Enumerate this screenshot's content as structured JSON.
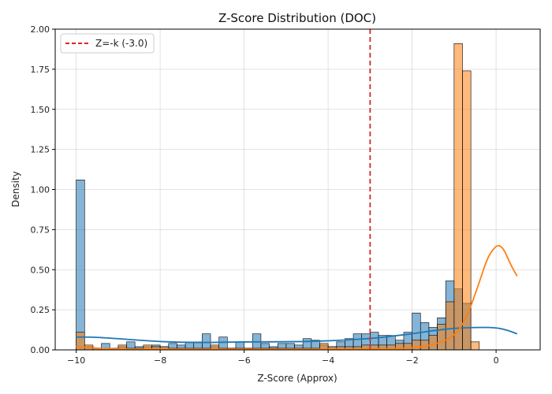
{
  "chart_data": {
    "type": "histogram",
    "title": "Z-Score Distribution (DOC)",
    "xlabel": "Z-Score (Approx)",
    "ylabel": "Density",
    "xlim": [
      -10.5,
      1.05
    ],
    "ylim": [
      0,
      2.0
    ],
    "xticks": [
      -10,
      -8,
      -6,
      -4,
      -2,
      0
    ],
    "xtick_labels": [
      "−10",
      "−8",
      "−6",
      "−4",
      "−2",
      "0"
    ],
    "yticks": [
      0,
      0.25,
      0.5,
      0.75,
      1.0,
      1.25,
      1.5,
      1.75,
      2.0
    ],
    "ytick_labels": [
      "0.00",
      "0.25",
      "0.50",
      "0.75",
      "1.00",
      "1.25",
      "1.50",
      "1.75",
      "2.00"
    ],
    "grid": true,
    "legend_position": "top-left",
    "bin_start": -10,
    "bin_width": 0.2,
    "series": [
      {
        "color": "#1f77b4",
        "values": [
          1.06,
          0.02,
          0.01,
          0.04,
          0.01,
          0.02,
          0.05,
          0.02,
          0.02,
          0.03,
          0.02,
          0.04,
          0.03,
          0.05,
          0.05,
          0.1,
          0.02,
          0.08,
          0.01,
          0.05,
          0.01,
          0.1,
          0.04,
          0.02,
          0.04,
          0.04,
          0.03,
          0.07,
          0.06,
          0.03,
          0.02,
          0.05,
          0.07,
          0.1,
          0.1,
          0.11,
          0.09,
          0.09,
          0.06,
          0.11,
          0.23,
          0.17,
          0.14,
          0.2,
          0.43,
          0.38,
          0.29,
          0.0
        ],
        "kde": [
          [
            -10,
            0.08
          ],
          [
            -9.6,
            0.08
          ],
          [
            -9,
            0.07
          ],
          [
            -8,
            0.05
          ],
          [
            -7,
            0.045
          ],
          [
            -6,
            0.05
          ],
          [
            -5,
            0.05
          ],
          [
            -4,
            0.055
          ],
          [
            -3,
            0.07
          ],
          [
            -2.5,
            0.085
          ],
          [
            -2,
            0.1
          ],
          [
            -1.5,
            0.12
          ],
          [
            -1,
            0.135
          ],
          [
            -0.5,
            0.14
          ],
          [
            0,
            0.14
          ],
          [
            0.3,
            0.12
          ],
          [
            0.5,
            0.1
          ]
        ]
      },
      {
        "color": "#ff7f0e",
        "values": [
          0.11,
          0.03,
          0.01,
          0.0,
          0.0,
          0.03,
          0.01,
          0.01,
          0.03,
          0.02,
          0.02,
          0.01,
          0.01,
          0.01,
          0.01,
          0.01,
          0.03,
          0.01,
          0.01,
          0.01,
          0.01,
          0.01,
          0.01,
          0.01,
          0.01,
          0.01,
          0.01,
          0.01,
          0.01,
          0.04,
          0.02,
          0.02,
          0.02,
          0.02,
          0.03,
          0.03,
          0.03,
          0.03,
          0.04,
          0.04,
          0.06,
          0.06,
          0.09,
          0.16,
          0.3,
          1.91,
          1.74,
          0.05
        ],
        "kde": [
          [
            -10,
            0.02
          ],
          [
            -9.5,
            0.01
          ],
          [
            -9,
            0.005
          ],
          [
            -8,
            0.004
          ],
          [
            -6,
            0.004
          ],
          [
            -4,
            0.004
          ],
          [
            -3,
            0.005
          ],
          [
            -2,
            0.01
          ],
          [
            -1.5,
            0.03
          ],
          [
            -1,
            0.08
          ],
          [
            -0.7,
            0.2
          ],
          [
            -0.4,
            0.42
          ],
          [
            -0.2,
            0.58
          ],
          [
            0,
            0.65
          ],
          [
            0.1,
            0.65
          ],
          [
            0.2,
            0.62
          ],
          [
            0.35,
            0.53
          ],
          [
            0.5,
            0.46
          ]
        ]
      }
    ],
    "reference_line": {
      "x": -3.0,
      "color": "#d62728",
      "label": "Z=-k (-3.0)"
    }
  }
}
